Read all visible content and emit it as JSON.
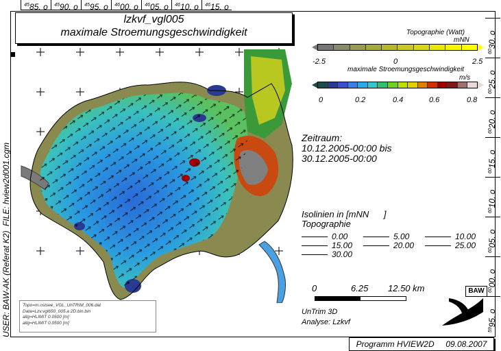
{
  "title": {
    "line1": "lzkvf_vgl005",
    "line2": "maximale Stroemungsgeschwindigkeit"
  },
  "top_ticks": [
    {
      "deg": "45",
      "val": "85. o"
    },
    {
      "deg": "45",
      "val": "90. o"
    },
    {
      "deg": "45",
      "val": "95. o"
    },
    {
      "deg": "46",
      "val": "00. o"
    },
    {
      "deg": "46",
      "val": "05. o"
    },
    {
      "deg": "46",
      "val": "10. o"
    },
    {
      "deg": "46",
      "val": "15. o"
    }
  ],
  "right_ticks": [
    {
      "deg": "60",
      "val": "30. o"
    },
    {
      "deg": "60",
      "val": "25. o"
    },
    {
      "deg": "60",
      "val": "20. o"
    },
    {
      "deg": "60",
      "val": "15. o"
    },
    {
      "deg": "60",
      "val": "10. o"
    },
    {
      "deg": "60",
      "val": "05. o"
    },
    {
      "deg": "60",
      "val": "00. o"
    },
    {
      "deg": "59",
      "val": "95. o"
    }
  ],
  "left_side": {
    "file": "FILE: hview2d001.cgm",
    "user": "USER: BAW-AK (Referat K2)"
  },
  "legend_topo": {
    "title": "Topographie (Watt)",
    "unit": "mNN",
    "ticks": [
      "-2.5",
      "0",
      "2.5"
    ],
    "colors": [
      "#777777",
      "#8a8a6a",
      "#9a9a55",
      "#a8a840",
      "#b8b830",
      "#c8c820",
      "#d8d810",
      "#e8e800",
      "#f5f500",
      "#ffff00"
    ]
  },
  "legend_speed": {
    "title": "maximale Stroemungsgeschwindigkeit",
    "unit": "m/s",
    "ticks": [
      "0",
      "0.2",
      "0.4",
      "0.6",
      "0.8"
    ],
    "colors": [
      "#1e4a4a",
      "#2a3a90",
      "#3a50d0",
      "#3a80e8",
      "#2aaae8",
      "#30c8c8",
      "#30c070",
      "#70d020",
      "#b8e000",
      "#e0d000",
      "#e08000",
      "#d03000",
      "#a00000",
      "#801818",
      "#a07070",
      "#e8d8d8"
    ]
  },
  "zeitraum": {
    "label": "Zeitraum:",
    "from": "10.12.2005-00:00 bis",
    "to": "30.12.2005-00:00"
  },
  "isolinien": {
    "title": "Isolinien in [mNN      ]",
    "subtitle": "Topographie",
    "values": [
      "0.00",
      "5.00",
      "10.00",
      "15.00",
      "20.00",
      "25.00",
      "30.00"
    ]
  },
  "scale": {
    "labels": [
      "0",
      "6.25",
      "12.50 km"
    ]
  },
  "model": {
    "name": "UnTrim 3D",
    "analysis": "Analyse: Lzkvf"
  },
  "logo": {
    "text": "BAW"
  },
  "info": {
    "lines": [
      "Topo=m.ostsee_VGL_UnTRIM_006.dat",
      "Data=Lzv.vgl650_005.a 2D.bin.bin",
      "allg=HLIMIT  0.0500 [m]",
      "allg=HLIMIT  0.0500 [m]"
    ]
  },
  "footer": {
    "program": "Programm HVIEW2D",
    "date": "09.08.2007"
  }
}
